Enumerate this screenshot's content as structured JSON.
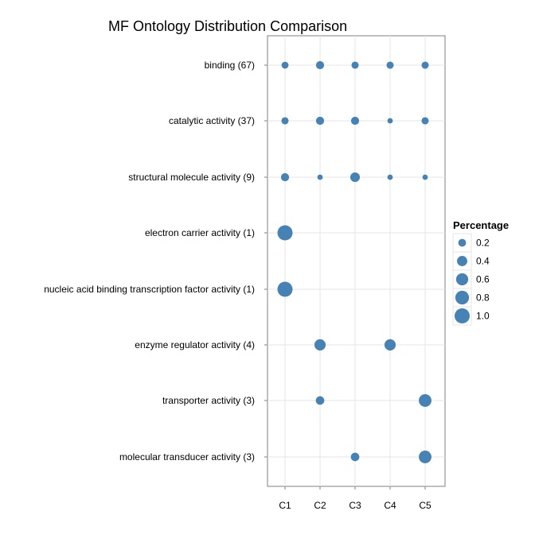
{
  "chart_data": {
    "type": "scatter",
    "title": "MF Ontology Distribution Comparison",
    "xlabel": "",
    "ylabel": "",
    "x_categories": [
      "C1",
      "C2",
      "C3",
      "C4",
      "C5"
    ],
    "y_categories": [
      "binding (67)",
      "catalytic activity (37)",
      "structural molecule activity (9)",
      "electron carrier activity (1)",
      "nucleic acid binding transcription factor activity (1)",
      "enzyme regulator activity (4)",
      "transporter activity (3)",
      "molecular transducer activity (3)"
    ],
    "points": [
      {
        "x": "C1",
        "y": "binding (67)",
        "value": 0.15
      },
      {
        "x": "C2",
        "y": "binding (67)",
        "value": 0.22
      },
      {
        "x": "C3",
        "y": "binding (67)",
        "value": 0.16
      },
      {
        "x": "C4",
        "y": "binding (67)",
        "value": 0.16
      },
      {
        "x": "C5",
        "y": "binding (67)",
        "value": 0.16
      },
      {
        "x": "C1",
        "y": "catalytic activity (37)",
        "value": 0.16
      },
      {
        "x": "C2",
        "y": "catalytic activity (37)",
        "value": 0.22
      },
      {
        "x": "C3",
        "y": "catalytic activity (37)",
        "value": 0.22
      },
      {
        "x": "C4",
        "y": "catalytic activity (37)",
        "value": 0.07
      },
      {
        "x": "C5",
        "y": "catalytic activity (37)",
        "value": 0.16
      },
      {
        "x": "C1",
        "y": "structural molecule activity (9)",
        "value": 0.22
      },
      {
        "x": "C2",
        "y": "structural molecule activity (9)",
        "value": 0.07
      },
      {
        "x": "C3",
        "y": "structural molecule activity (9)",
        "value": 0.34
      },
      {
        "x": "C4",
        "y": "structural molecule activity (9)",
        "value": 0.07
      },
      {
        "x": "C5",
        "y": "structural molecule activity (9)",
        "value": 0.07
      },
      {
        "x": "C1",
        "y": "electron carrier activity (1)",
        "value": 1.0
      },
      {
        "x": "C1",
        "y": "nucleic acid binding transcription factor activity (1)",
        "value": 1.0
      },
      {
        "x": "C2",
        "y": "enzyme regulator activity (4)",
        "value": 0.5
      },
      {
        "x": "C4",
        "y": "enzyme regulator activity (4)",
        "value": 0.5
      },
      {
        "x": "C2",
        "y": "transporter activity (3)",
        "value": 0.25
      },
      {
        "x": "C5",
        "y": "transporter activity (3)",
        "value": 0.66
      },
      {
        "x": "C3",
        "y": "molecular transducer activity (3)",
        "value": 0.25
      },
      {
        "x": "C5",
        "y": "molecular transducer activity (3)",
        "value": 0.66
      }
    ],
    "legend": {
      "title": "Percentage",
      "placement": "right",
      "values": [
        0.2,
        0.4,
        0.6,
        0.8,
        1.0
      ],
      "labels": [
        "0.2",
        "0.4",
        "0.6",
        "0.8",
        "1.0"
      ]
    },
    "grid": true,
    "point_color": "#4682B4"
  }
}
